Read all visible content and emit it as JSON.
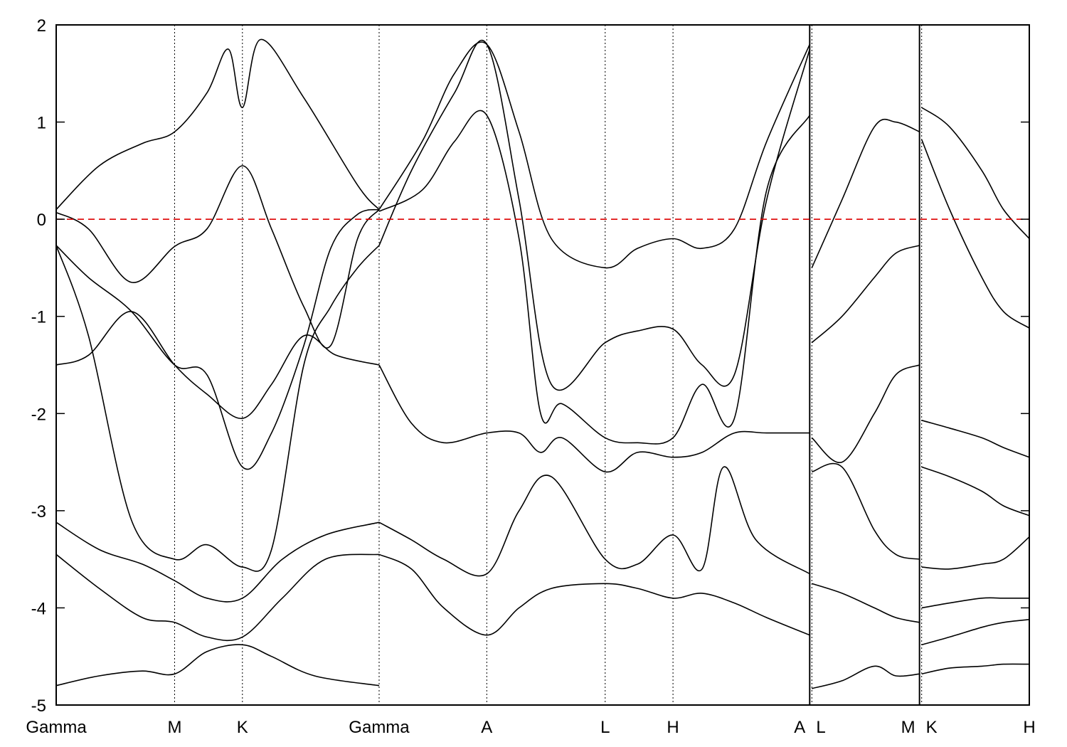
{
  "chart_data": {
    "type": "line",
    "title": "",
    "xlabel": "",
    "ylabel": "",
    "ylim": [
      -5,
      2
    ],
    "y_ticks": [
      -5,
      -4,
      -3,
      -2,
      -1,
      0,
      1,
      2
    ],
    "grid": false,
    "legend": "none",
    "high_symmetry_points": [
      {
        "label": "Gamma",
        "x": 0
      },
      {
        "label": "M",
        "x": 1.1
      },
      {
        "label": "K",
        "x": 1.73
      },
      {
        "label": "Gamma",
        "x": 3.0
      },
      {
        "label": "A",
        "x": 4.0
      },
      {
        "label": "L",
        "x": 5.1
      },
      {
        "label": "H",
        "x": 5.73
      },
      {
        "label": "A",
        "x": 7.0
      },
      {
        "label": "L",
        "x": 7.02
      },
      {
        "label": "M",
        "x": 8.02
      },
      {
        "label": "K",
        "x": 8.04
      },
      {
        "label": "H",
        "x": 9.04
      }
    ],
    "path_breaks": [
      7.0,
      8.02
    ],
    "fermi_level": 0,
    "colors": {
      "bands": "#000000",
      "fermi": "#dd0000"
    },
    "series": [
      {
        "x": [
          0,
          0.4,
          0.8,
          1.1,
          1.4,
          1.6,
          1.73,
          1.9,
          2.3,
          2.8,
          3.0
        ],
        "y": [
          0.1,
          0.55,
          0.78,
          0.9,
          1.3,
          1.75,
          1.15,
          1.85,
          1.25,
          0.35,
          0.1
        ]
      },
      {
        "x": [
          0,
          0.3,
          0.7,
          1.1,
          1.4,
          1.73,
          2.0,
          2.3,
          2.55,
          2.8,
          3.0
        ],
        "y": [
          0.07,
          -0.1,
          -0.65,
          -0.28,
          -0.1,
          0.55,
          -0.1,
          -0.9,
          -1.3,
          -0.2,
          0.1
        ]
      },
      {
        "x": [
          0,
          0.3,
          0.7,
          1.1,
          1.4,
          1.73,
          2.0,
          2.3,
          2.55,
          2.8,
          3.0
        ],
        "y": [
          -0.27,
          -0.6,
          -0.95,
          -1.5,
          -1.6,
          -2.55,
          -2.2,
          -1.3,
          -0.3,
          0.05,
          0.1
        ]
      },
      {
        "x": [
          0,
          0.3,
          0.7,
          1.1,
          1.4,
          1.73,
          2.0,
          2.3,
          2.55,
          2.8,
          3.0
        ],
        "y": [
          -0.27,
          -1.2,
          -3.1,
          -3.5,
          -3.35,
          -3.58,
          -3.4,
          -1.5,
          -0.9,
          -0.5,
          -0.27
        ]
      },
      {
        "x": [
          0,
          0.3,
          0.7,
          1.1,
          1.4,
          1.73,
          2.0,
          2.3,
          2.6,
          3.0
        ],
        "y": [
          -1.5,
          -1.4,
          -0.95,
          -1.5,
          -1.8,
          -2.05,
          -1.7,
          -1.2,
          -1.4,
          -1.5
        ]
      },
      {
        "x": [
          0,
          0.4,
          0.8,
          1.1,
          1.4,
          1.73,
          2.1,
          2.5,
          3.0
        ],
        "y": [
          -3.12,
          -3.4,
          -3.55,
          -3.72,
          -3.9,
          -3.9,
          -3.5,
          -3.25,
          -3.12
        ]
      },
      {
        "x": [
          0,
          0.4,
          0.8,
          1.1,
          1.4,
          1.73,
          2.1,
          2.5,
          3.0
        ],
        "y": [
          -3.45,
          -3.8,
          -4.1,
          -4.15,
          -4.3,
          -4.3,
          -3.9,
          -3.5,
          -3.45
        ]
      },
      {
        "x": [
          0,
          0.4,
          0.8,
          1.1,
          1.4,
          1.73,
          2.0,
          2.4,
          3.0
        ],
        "y": [
          -4.8,
          -4.7,
          -4.65,
          -4.68,
          -4.45,
          -4.38,
          -4.5,
          -4.7,
          -4.8
        ]
      },
      {
        "x": [
          3.0,
          3.4,
          3.7,
          4.0,
          4.3,
          4.6,
          5.1,
          5.4,
          5.73,
          6.0,
          6.3,
          6.6,
          7.0
        ],
        "y": [
          0.1,
          0.8,
          1.5,
          1.8,
          0.9,
          -0.2,
          -0.5,
          -0.3,
          -0.2,
          -0.3,
          -0.1,
          0.8,
          1.8
        ]
      },
      {
        "x": [
          3.0,
          3.3,
          3.7,
          4.0,
          4.3,
          4.6,
          5.1,
          5.4,
          5.73,
          6.0,
          6.3,
          6.6,
          7.0
        ],
        "y": [
          -0.27,
          0.5,
          1.3,
          1.8,
          0.2,
          -1.7,
          -1.27,
          -1.15,
          -1.13,
          -1.5,
          -1.6,
          0.2,
          1.75
        ]
      },
      {
        "x": [
          3.0,
          3.4,
          3.7,
          4.0,
          4.3,
          4.5,
          4.7,
          5.1,
          5.4,
          5.73,
          6.0,
          6.3,
          6.6,
          7.0
        ],
        "y": [
          0.08,
          0.3,
          0.8,
          1.07,
          -0.2,
          -2.0,
          -1.9,
          -2.25,
          -2.3,
          -2.25,
          -1.7,
          -2.05,
          0.3,
          1.07
        ]
      },
      {
        "x": [
          3.0,
          3.3,
          3.6,
          4.0,
          4.3,
          4.5,
          4.7,
          5.1,
          5.4,
          5.73,
          6.0,
          6.3,
          6.6,
          7.0
        ],
        "y": [
          -1.5,
          -2.1,
          -2.3,
          -2.2,
          -2.2,
          -2.4,
          -2.25,
          -2.6,
          -2.4,
          -2.45,
          -2.4,
          -2.2,
          -2.2,
          -2.2
        ]
      },
      {
        "x": [
          3.0,
          3.3,
          3.6,
          4.0,
          4.3,
          4.6,
          5.1,
          5.4,
          5.73,
          6.0,
          6.2,
          6.5,
          7.0
        ],
        "y": [
          -3.12,
          -3.3,
          -3.5,
          -3.65,
          -3.0,
          -2.65,
          -3.5,
          -3.55,
          -3.25,
          -3.6,
          -2.55,
          -3.3,
          -3.65
        ]
      },
      {
        "x": [
          3.0,
          3.3,
          3.6,
          4.0,
          4.3,
          4.6,
          5.1,
          5.4,
          5.73,
          6.0,
          6.3,
          6.6,
          7.0
        ],
        "y": [
          -3.45,
          -3.6,
          -4.0,
          -4.28,
          -4.0,
          -3.8,
          -3.75,
          -3.8,
          -3.9,
          -3.85,
          -3.95,
          -4.1,
          -4.28
        ]
      },
      {
        "x": [
          7.02,
          7.3,
          7.6,
          7.8,
          8.02
        ],
        "y": [
          -0.5,
          0.2,
          0.95,
          1.0,
          0.9
        ]
      },
      {
        "x": [
          7.02,
          7.3,
          7.6,
          7.8,
          8.02
        ],
        "y": [
          -1.27,
          -1.0,
          -0.6,
          -0.35,
          -0.27
        ]
      },
      {
        "x": [
          7.02,
          7.3,
          7.6,
          7.8,
          8.02
        ],
        "y": [
          -2.25,
          -2.5,
          -2.0,
          -1.6,
          -1.5
        ]
      },
      {
        "x": [
          7.02,
          7.3,
          7.6,
          7.8,
          8.02
        ],
        "y": [
          -2.6,
          -2.55,
          -3.2,
          -3.45,
          -3.5
        ]
      },
      {
        "x": [
          7.02,
          7.3,
          7.6,
          7.8,
          8.02
        ],
        "y": [
          -3.75,
          -3.85,
          -4.0,
          -4.1,
          -4.15
        ]
      },
      {
        "x": [
          7.02,
          7.3,
          7.6,
          7.8,
          8.02
        ],
        "y": [
          -4.83,
          -4.75,
          -4.6,
          -4.7,
          -4.68
        ]
      },
      {
        "x": [
          8.04,
          8.3,
          8.6,
          8.8,
          9.04
        ],
        "y": [
          1.15,
          0.95,
          0.5,
          0.1,
          -0.2
        ]
      },
      {
        "x": [
          8.04,
          8.3,
          8.6,
          8.8,
          9.04
        ],
        "y": [
          0.82,
          0.1,
          -0.6,
          -0.95,
          -1.12
        ]
      },
      {
        "x": [
          8.04,
          8.3,
          8.6,
          8.8,
          9.04
        ],
        "y": [
          -2.07,
          -2.15,
          -2.25,
          -2.35,
          -2.45
        ]
      },
      {
        "x": [
          8.04,
          8.3,
          8.6,
          8.8,
          9.04
        ],
        "y": [
          -2.55,
          -2.65,
          -2.8,
          -2.95,
          -3.05
        ]
      },
      {
        "x": [
          8.04,
          8.3,
          8.6,
          8.8,
          9.04
        ],
        "y": [
          -3.58,
          -3.6,
          -3.55,
          -3.5,
          -3.27
        ]
      },
      {
        "x": [
          8.04,
          8.3,
          8.6,
          8.8,
          9.04
        ],
        "y": [
          -4.0,
          -3.95,
          -3.9,
          -3.9,
          -3.9
        ]
      },
      {
        "x": [
          8.04,
          8.3,
          8.6,
          8.8,
          9.04
        ],
        "y": [
          -4.38,
          -4.3,
          -4.2,
          -4.15,
          -4.12
        ]
      },
      {
        "x": [
          8.04,
          8.3,
          8.6,
          8.8,
          9.04
        ],
        "y": [
          -4.68,
          -4.62,
          -4.6,
          -4.58,
          -4.58
        ]
      }
    ]
  }
}
